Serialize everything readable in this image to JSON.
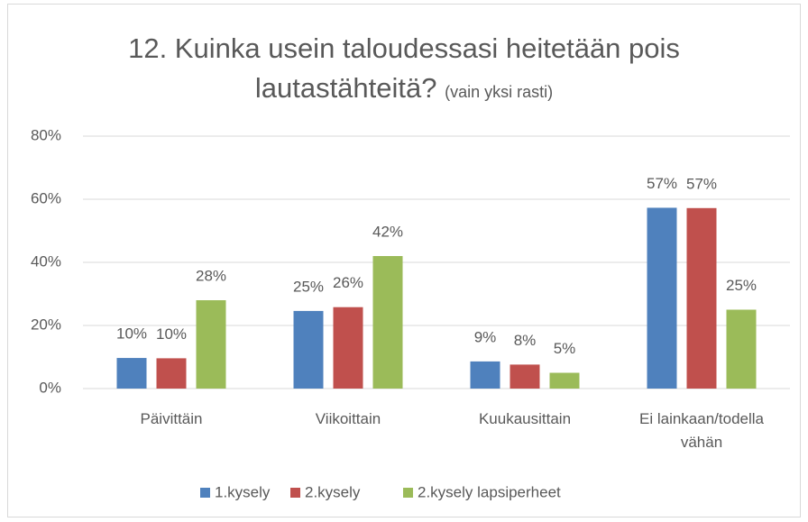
{
  "chart_data": {
    "type": "bar",
    "title": "12. Kuinka usein taloudessasi heitetään pois lautastähteitä?",
    "subtitle": "(vain yksi rasti)",
    "categories": [
      "Päivittäin",
      "Viikoittain",
      "Kuukausittain",
      "Ei lainkaan/todella vähän"
    ],
    "series": [
      {
        "name": "1.kysely",
        "color": "#4f81bd",
        "values": [
          9.7,
          24.6,
          8.6,
          57.3
        ],
        "value_labels": [
          "10%",
          "25%",
          "9%",
          "57%"
        ]
      },
      {
        "name": "2.kysely",
        "color": "#c0504d",
        "values": [
          9.6,
          25.8,
          7.6,
          57.2
        ],
        "value_labels": [
          "10%",
          "26%",
          "8%",
          "57%"
        ]
      },
      {
        "name": "2.kysely lapsiperheet",
        "color": "#9bbb59",
        "values": [
          28,
          42,
          5,
          25
        ],
        "value_labels": [
          "28%",
          "42%",
          "5%",
          "25%"
        ]
      }
    ],
    "ylim": [
      0,
      80
    ],
    "yticks": [
      {
        "value": 0,
        "label": "0%"
      },
      {
        "value": 20,
        "label": "20%"
      },
      {
        "value": 40,
        "label": "40%"
      },
      {
        "value": 60,
        "label": "60%"
      },
      {
        "value": 80,
        "label": "80%"
      }
    ],
    "grid": true,
    "legend": "bottom"
  }
}
